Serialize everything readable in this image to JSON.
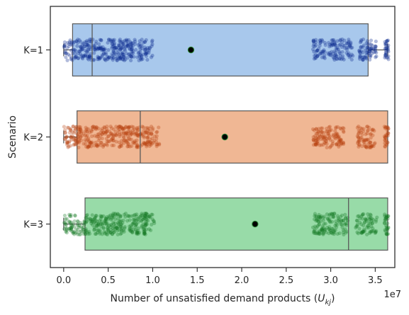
{
  "chart_data": {
    "type": "box",
    "orientation": "horizontal",
    "xlabel": "Number of unsatisfied demand products (",
    "xlabel_math": "U",
    "xlabel_sub": "kj",
    "xlabel_suffix": ")",
    "ylabel": "Scenario",
    "x_offset_label": "1e7",
    "x_unit_scale": 10000000,
    "xlim": [
      -0.15,
      3.72
    ],
    "xticks": [
      0.0,
      0.5,
      1.0,
      1.5,
      2.0,
      2.5,
      3.0,
      3.5
    ],
    "xtick_labels": [
      "0.0",
      "0.5",
      "1.0",
      "1.5",
      "2.0",
      "2.5",
      "3.0",
      "3.5"
    ],
    "grid": false,
    "categories": [
      "K=1",
      "K=2",
      "K=3"
    ],
    "series": [
      {
        "category": "K=1",
        "box_color": "#a8c8ec",
        "point_color": "#0b2a8f",
        "whisker_low": 0.0,
        "q1": 0.1,
        "median": 0.32,
        "q3": 3.42,
        "whisker_high": 3.64,
        "mean": 1.43,
        "point_clusters": [
          [
            0.0,
            0.95,
            320
          ],
          [
            0.95,
            1.0,
            10
          ],
          [
            2.8,
            3.25,
            130
          ],
          [
            3.32,
            3.52,
            70
          ],
          [
            3.6,
            3.65,
            30
          ]
        ]
      },
      {
        "category": "K=2",
        "box_color": "#f0b794",
        "point_color": "#b8400f",
        "whisker_low": 0.0,
        "q1": 0.15,
        "median": 0.86,
        "q3": 3.64,
        "whisker_high": 3.64,
        "mean": 1.81,
        "point_clusters": [
          [
            0.0,
            1.0,
            340
          ],
          [
            1.0,
            1.08,
            15
          ],
          [
            2.8,
            3.15,
            120
          ],
          [
            3.3,
            3.5,
            70
          ],
          [
            3.6,
            3.65,
            30
          ]
        ]
      },
      {
        "category": "K=3",
        "box_color": "#98dba8",
        "point_color": "#157a24",
        "whisker_low": 0.0,
        "q1": 0.24,
        "median": 3.2,
        "q3": 3.64,
        "whisker_high": 3.64,
        "mean": 2.15,
        "point_clusters": [
          [
            0.0,
            0.95,
            330
          ],
          [
            0.95,
            1.02,
            12
          ],
          [
            2.8,
            3.2,
            130
          ],
          [
            3.28,
            3.52,
            70
          ],
          [
            3.6,
            3.65,
            30
          ]
        ]
      }
    ]
  }
}
